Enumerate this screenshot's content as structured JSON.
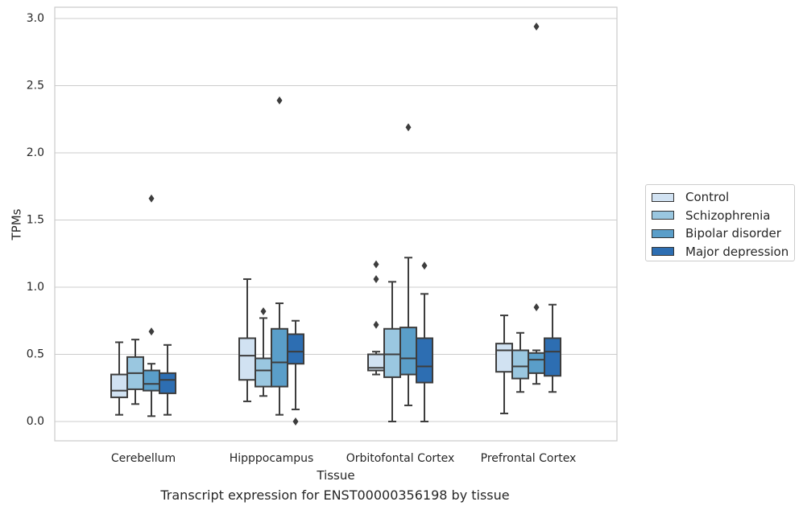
{
  "chart_data": {
    "type": "box",
    "title": "",
    "xlabel": "Tissue",
    "ylabel": "TPMs",
    "ylim": [
      -0.14,
      3.08
    ],
    "yticks": [
      0.0,
      0.5,
      1.0,
      1.5,
      2.0,
      2.5,
      3.0
    ],
    "ytick_labels": [
      "0.0",
      "0.5",
      "1.0",
      "1.5",
      "2.0",
      "2.5",
      "3.0"
    ],
    "grid": "horizontal",
    "legend_position": "center right (outside plot)",
    "categories": [
      "Cerebellum",
      "Hipppocampus",
      "Orbitofontal Cortex",
      "Prefrontal Cortex"
    ],
    "series": [
      {
        "name": "Control",
        "color": "#d1e2f2",
        "boxes": [
          {
            "whislo": 0.05,
            "q1": 0.18,
            "med": 0.23,
            "q3": 0.35,
            "whishi": 0.59,
            "fliers": []
          },
          {
            "whislo": 0.15,
            "q1": 0.31,
            "med": 0.49,
            "q3": 0.62,
            "whishi": 1.06,
            "fliers": []
          },
          {
            "whislo": 0.35,
            "q1": 0.38,
            "med": 0.4,
            "q3": 0.5,
            "whishi": 0.52,
            "fliers": [
              1.17,
              1.06,
              0.72
            ]
          },
          {
            "whislo": 0.06,
            "q1": 0.37,
            "med": 0.53,
            "q3": 0.58,
            "whishi": 0.79,
            "fliers": []
          }
        ]
      },
      {
        "name": "Schizophrenia",
        "color": "#9ac7e0",
        "boxes": [
          {
            "whislo": 0.13,
            "q1": 0.24,
            "med": 0.36,
            "q3": 0.48,
            "whishi": 0.61,
            "fliers": []
          },
          {
            "whislo": 0.19,
            "q1": 0.26,
            "med": 0.38,
            "q3": 0.47,
            "whishi": 0.77,
            "fliers": [
              0.82
            ]
          },
          {
            "whislo": 0.0,
            "q1": 0.33,
            "med": 0.5,
            "q3": 0.69,
            "whishi": 1.04,
            "fliers": []
          },
          {
            "whislo": 0.22,
            "q1": 0.32,
            "med": 0.41,
            "q3": 0.53,
            "whishi": 0.66,
            "fliers": []
          }
        ]
      },
      {
        "name": "Bipolar disorder",
        "color": "#5a9ec9",
        "boxes": [
          {
            "whislo": 0.04,
            "q1": 0.23,
            "med": 0.28,
            "q3": 0.38,
            "whishi": 0.43,
            "fliers": [
              1.66,
              0.67
            ]
          },
          {
            "whislo": 0.05,
            "q1": 0.26,
            "med": 0.44,
            "q3": 0.69,
            "whishi": 0.88,
            "fliers": [
              2.39
            ]
          },
          {
            "whislo": 0.12,
            "q1": 0.35,
            "med": 0.47,
            "q3": 0.7,
            "whishi": 1.22,
            "fliers": [
              2.19
            ]
          },
          {
            "whislo": 0.28,
            "q1": 0.36,
            "med": 0.46,
            "q3": 0.51,
            "whishi": 0.53,
            "fliers": [
              2.94,
              0.85
            ]
          }
        ]
      },
      {
        "name": "Major depression",
        "color": "#2d6eb2",
        "boxes": [
          {
            "whislo": 0.05,
            "q1": 0.21,
            "med": 0.31,
            "q3": 0.36,
            "whishi": 0.57,
            "fliers": []
          },
          {
            "whislo": 0.09,
            "q1": 0.43,
            "med": 0.52,
            "q3": 0.65,
            "whishi": 0.75,
            "fliers": [
              0.0
            ]
          },
          {
            "whislo": 0.0,
            "q1": 0.29,
            "med": 0.41,
            "q3": 0.62,
            "whishi": 0.95,
            "fliers": [
              1.16
            ]
          },
          {
            "whislo": 0.22,
            "q1": 0.34,
            "med": 0.52,
            "q3": 0.62,
            "whishi": 0.87,
            "fliers": []
          }
        ]
      }
    ],
    "caption": "Transcript expression for ENST00000356198 by tissue"
  }
}
